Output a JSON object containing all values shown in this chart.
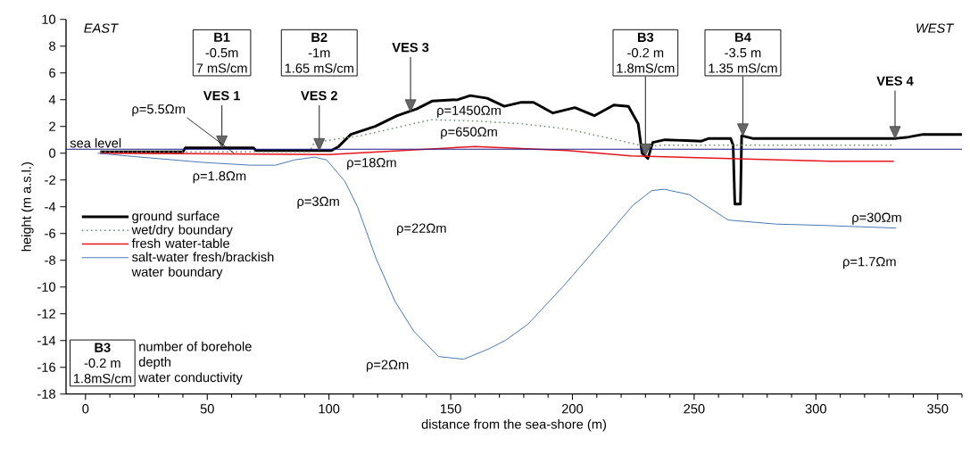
{
  "chart_data": {
    "type": "line",
    "xlabel": "distance from the sea-shore (m)",
    "ylabel": "height (m a.s.l.)",
    "xlim": [
      -8,
      360
    ],
    "ylim": [
      -18,
      10
    ],
    "xticks": [
      {
        "value": 0,
        "label": "0"
      },
      {
        "value": 10,
        "label": null
      },
      {
        "value": 20,
        "label": null
      },
      {
        "value": 30,
        "label": null
      },
      {
        "value": 40,
        "label": null
      },
      {
        "value": 50,
        "label": "50"
      },
      {
        "value": 60,
        "label": null
      },
      {
        "value": 70,
        "label": null
      },
      {
        "value": 80,
        "label": null
      },
      {
        "value": 90,
        "label": null
      },
      {
        "value": 100,
        "label": "100"
      },
      {
        "value": 110,
        "label": null
      },
      {
        "value": 120,
        "label": null
      },
      {
        "value": 130,
        "label": null
      },
      {
        "value": 140,
        "label": null
      },
      {
        "value": 150,
        "label": "150"
      },
      {
        "value": 160,
        "label": null
      },
      {
        "value": 170,
        "label": null
      },
      {
        "value": 180,
        "label": null
      },
      {
        "value": 190,
        "label": null
      },
      {
        "value": 200,
        "label": "200"
      },
      {
        "value": 210,
        "label": null
      },
      {
        "value": 220,
        "label": null
      },
      {
        "value": 230,
        "label": null
      },
      {
        "value": 240,
        "label": null
      },
      {
        "value": 250,
        "label": "250"
      },
      {
        "value": 260,
        "label": null
      },
      {
        "value": 270,
        "label": null
      },
      {
        "value": 280,
        "label": null
      },
      {
        "value": 290,
        "label": null
      },
      {
        "value": 300,
        "label": "300"
      },
      {
        "value": 310,
        "label": null
      },
      {
        "value": 320,
        "label": null
      },
      {
        "value": 330,
        "label": null
      },
      {
        "value": 340,
        "label": null
      },
      {
        "value": 350,
        "label": "350"
      },
      {
        "value": 360,
        "label": null
      }
    ],
    "yticks": [
      {
        "value": -18,
        "label": "-18"
      },
      {
        "value": -16,
        "label": "-16"
      },
      {
        "value": -14,
        "label": "-14"
      },
      {
        "value": -12,
        "label": "-12"
      },
      {
        "value": -10,
        "label": "-10"
      },
      {
        "value": -8,
        "label": "-8"
      },
      {
        "value": -6,
        "label": "-6"
      },
      {
        "value": -4,
        "label": "-4"
      },
      {
        "value": -2,
        "label": "-2"
      },
      {
        "value": 0,
        "label": "0"
      },
      {
        "value": 2,
        "label": "2"
      },
      {
        "value": 4,
        "label": "4"
      },
      {
        "value": 6,
        "label": "6"
      },
      {
        "value": 8,
        "label": "8"
      },
      {
        "value": 10,
        "label": "10"
      }
    ],
    "legend": "left",
    "series": [
      {
        "name": "ground surface",
        "color": "#000000",
        "line_style": "solid",
        "x": [
          6,
          40,
          41,
          69,
          70,
          101,
          104,
          109,
          119,
          128,
          136,
          142.5,
          153,
          158,
          165,
          172,
          179,
          184,
          192,
          201,
          209,
          217,
          223,
          227,
          228.6,
          231,
          233,
          238,
          253,
          256,
          265,
          266,
          266.7,
          269,
          269.5,
          274,
          333,
          338,
          344,
          360
        ],
        "values": [
          0.1,
          0.1,
          0.4,
          0.4,
          0.2,
          0.2,
          0.5,
          1.4,
          2.0,
          2.8,
          3.3,
          3.9,
          4.0,
          4.3,
          4.1,
          3.5,
          3.8,
          3.8,
          3.0,
          3.4,
          2.8,
          3.6,
          3.5,
          2.2,
          0.0,
          -0.4,
          0.8,
          1.0,
          0.9,
          1.1,
          1.1,
          0.6,
          -3.8,
          -3.8,
          1.3,
          1.1,
          1.1,
          1.2,
          1.4,
          1.4
        ]
      },
      {
        "name": "wet/dry boundary",
        "color": "#6f8f6f",
        "line_style": "dotted",
        "x": [
          6,
          92,
          94,
          113,
          142,
          160,
          179,
          198,
          218,
          230,
          238,
          332
        ],
        "values": [
          0.1,
          0.1,
          0.8,
          1.3,
          2.5,
          2.4,
          2.2,
          1.8,
          1.0,
          0.5,
          0.6,
          0.6
        ]
      },
      {
        "name": "fresh water-table",
        "color": "#e8141c",
        "line_style": "solid",
        "x": [
          6,
          100,
          130,
          160,
          198,
          224,
          265,
          306,
          332
        ],
        "values": [
          0.0,
          -0.1,
          0.2,
          0.5,
          0.2,
          -0.2,
          -0.4,
          -0.6,
          -0.6
        ]
      },
      {
        "name": "salt-water fresh/brackish water boundary",
        "color": "#3a6fb0",
        "line_style": "solid",
        "x": [
          5,
          16.5,
          48.7,
          68,
          78,
          86,
          94,
          99,
          106.5,
          111.7,
          119.4,
          127.2,
          134.8,
          145,
          155.3,
          166,
          172.4,
          181.6,
          196,
          211.7,
          224.8,
          232.6,
          237.7,
          248,
          264,
          270.5,
          283.5,
          303,
          333
        ],
        "values": [
          0.0,
          -0.2,
          -0.7,
          -0.9,
          -0.9,
          -0.5,
          -0.3,
          -0.5,
          -2.1,
          -4.0,
          -7.9,
          -11.1,
          -13.3,
          -15.2,
          -15.4,
          -14.6,
          -14.0,
          -12.8,
          -10.0,
          -6.7,
          -3.9,
          -2.8,
          -2.7,
          -3.1,
          -5.0,
          -5.1,
          -5.3,
          -5.4,
          -5.6
        ]
      }
    ],
    "ref_lines": [
      {
        "axis": "y",
        "value": 0.3,
        "label": "sea level",
        "color": "#1c1c8a"
      }
    ],
    "annotations": [
      "EAST",
      "WEST",
      {
        "text": "VES 1",
        "x": 56,
        "y": 0.4
      },
      {
        "text": "VES 2",
        "x": 96,
        "y": 0.2
      },
      {
        "text": "VES 3",
        "x": 133.5,
        "y": 3.1
      },
      {
        "text": "VES 4",
        "x": 332.5,
        "y": 1.1
      },
      "B1",
      "-0.5m",
      "7 mS/cm",
      "B2",
      "-1m",
      "1.65 mS/cm",
      "B3",
      "-0.2 m",
      {
        "text": "1.8mS/cm",
        "x": 230,
        "y": -0.2
      },
      "B4",
      "-3.5 m",
      {
        "text": "1.35 mS/cm",
        "x": 270,
        "y": 1.3
      },
      {
        "text": "ρ=5.5Ωm",
        "x": 61,
        "y": 0.0
      },
      "ρ=1.8Ωm",
      "ρ=18Ωm",
      "ρ=3Ωm",
      "ρ=1450Ωm",
      "ρ=650Ωm",
      "ρ=22Ωm",
      "ρ=2Ωm",
      "ρ=30Ωm",
      "ρ=1.7Ωm",
      "B3",
      "-0.2 m",
      "1.8mS/cm",
      "number of borehole",
      "depth",
      "water conductivity"
    ]
  }
}
